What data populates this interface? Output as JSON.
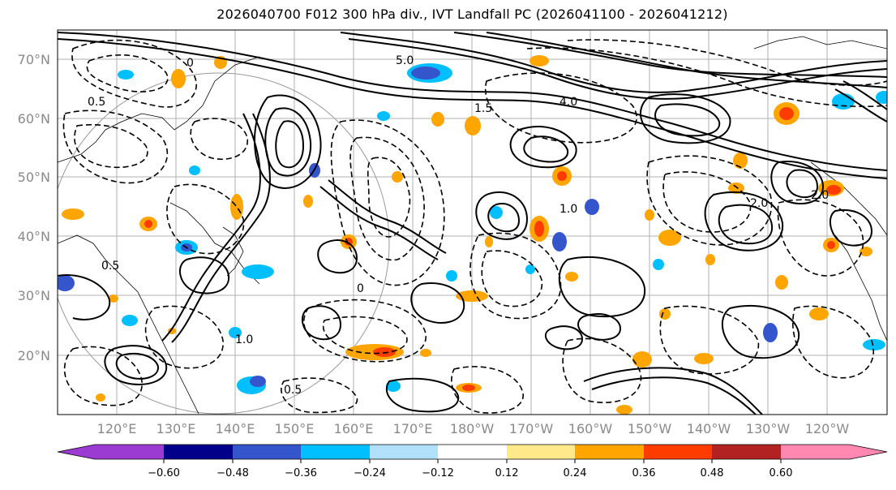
{
  "title": "2026040700 F012 300 hPa div., IVT Landfall PC (2026041100 - 2026041212)",
  "map": {
    "lat_labels": [
      "70°N",
      "60°N",
      "50°N",
      "40°N",
      "30°N",
      "20°N"
    ],
    "lon_labels": [
      "120°E",
      "130°E",
      "140°E",
      "150°E",
      "160°E",
      "170°E",
      "180°W",
      "170°W",
      "160°W",
      "150°W",
      "140°W",
      "130°W",
      "120°W"
    ],
    "contour_labels": [
      "5.0",
      "0.5",
      "0",
      "2.0",
      "4.0",
      "1.5",
      "1.0",
      "0.5",
      "0",
      "2.0",
      "1.0",
      "0.5"
    ]
  },
  "colorbar": {
    "tick_labels": [
      "−0.60",
      "−0.48",
      "−0.36",
      "−0.24",
      "−0.12",
      "0.12",
      "0.24",
      "0.36",
      "0.48",
      "0.60"
    ],
    "colors": [
      "#9b3bd1",
      "#00008b",
      "#3555cc",
      "#00bfff",
      "#b0e0fa",
      "#ffffff",
      "#ffe98a",
      "#ffa500",
      "#ff3c00",
      "#b22222",
      "#ff88b0",
      "#ff88b0"
    ]
  },
  "colors": {
    "divergence_positive": "#ffa500",
    "divergence_strong_positive": "#ff3c00",
    "divergence_negative": "#00bfff",
    "divergence_strong_negative": "#3555cc",
    "contour": "#000000",
    "grid": "#b0b0b0",
    "coast": "#000000"
  }
}
